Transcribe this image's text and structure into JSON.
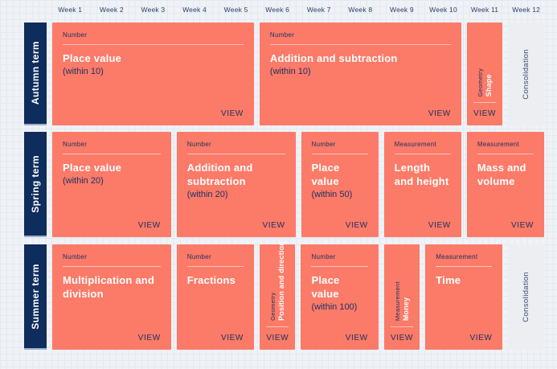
{
  "colors": {
    "card_coral": "#fc7a68",
    "term_navy": "#0e2c5c",
    "text_navy": "#1d3161",
    "card_text_white": "#ffffff",
    "consolidation_bg": "#edeef1",
    "page_background": "#eff2f6"
  },
  "weeks": {
    "labels": [
      "Week 1",
      "Week 2",
      "Week 3",
      "Week 4",
      "Week 5",
      "Week 6",
      "Week 7",
      "Week 8",
      "Week 9",
      "Week 10",
      "Week 11",
      "Week 12"
    ]
  },
  "terms": [
    {
      "label": "Autumn term",
      "blocks": [
        {
          "category": "Number",
          "title": "Place value",
          "subtitle": "(within 10)",
          "action": "VIEW"
        },
        {
          "category": "Number",
          "title": "Addition and subtraction",
          "subtitle": "(within 10)",
          "action": "VIEW"
        },
        {
          "category": "Geometry",
          "title": "Shape",
          "action": "VIEW"
        },
        {
          "title": "Consolidation"
        }
      ]
    },
    {
      "label": "Spring term",
      "blocks": [
        {
          "category": "Number",
          "title": "Place value",
          "subtitle": "(within 20)",
          "action": "VIEW"
        },
        {
          "category": "Number",
          "title": "Addition and subtraction",
          "subtitle": "(within 20)",
          "action": "VIEW"
        },
        {
          "category": "Number",
          "title": "Place value",
          "subtitle": "(within 50)",
          "action": "VIEW"
        },
        {
          "category": "Measurement",
          "title": "Length and height",
          "action": "VIEW"
        },
        {
          "category": "Measurement",
          "title": "Mass and volume",
          "action": "VIEW"
        }
      ]
    },
    {
      "label": "Summer term",
      "blocks": [
        {
          "category": "Number",
          "title": "Multiplication and division",
          "action": "VIEW"
        },
        {
          "category": "Number",
          "title": "Fractions",
          "action": "VIEW"
        },
        {
          "category": "Geometry",
          "title": "Position and direction",
          "action": "VIEW"
        },
        {
          "category": "Number",
          "title": "Place value",
          "subtitle": "(within 100)",
          "action": "VIEW"
        },
        {
          "category": "Measurement",
          "title": "Money",
          "action": "VIEW"
        },
        {
          "category": "Measurement",
          "title": "Time",
          "action": "VIEW"
        },
        {
          "title": "Consolidation"
        }
      ]
    }
  ]
}
